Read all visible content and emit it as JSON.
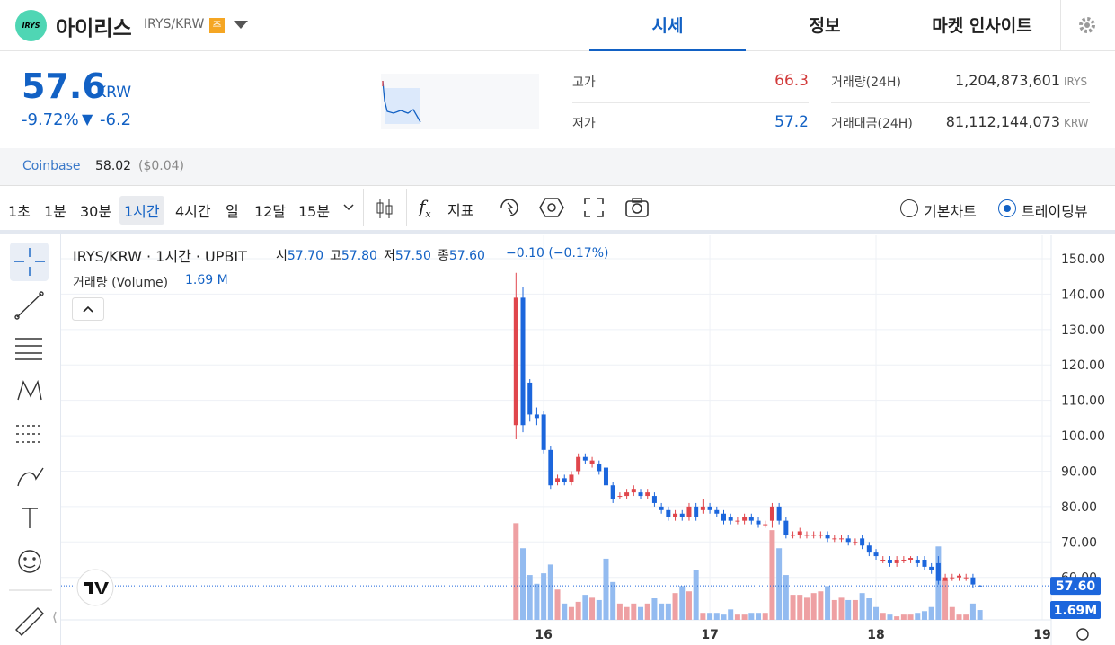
{
  "header": {
    "logo": "IRYS",
    "name": "아이리스",
    "pair": "IRYS/KRW",
    "badge": "주",
    "tabs": [
      "시세",
      "정보",
      "마켓 인사이트"
    ],
    "active_tab": 0
  },
  "price": {
    "value": "57.6",
    "unit": "KRW",
    "change_rate": "-9.72%",
    "arrow": "▼",
    "change": "-6.2"
  },
  "stats": {
    "high_label": "고가",
    "high": "66.3",
    "low_label": "저가",
    "low": "57.2",
    "volume_label": "거래량(24H)",
    "volume": "1,204,873,601",
    "volume_unit": "IRYS",
    "amount_label": "거래대금(24H)",
    "amount": "81,112,144,073",
    "amount_unit": "KRW"
  },
  "exchange": {
    "name": "Coinbase",
    "price": "58.02",
    "usd": "($0.04)"
  },
  "toolbar": {
    "intervals": [
      "1초",
      "1분",
      "30분",
      "1시간",
      "4시간",
      "일",
      "12달",
      "15분"
    ],
    "active_interval": 3,
    "indicator": "지표",
    "chart_modes": [
      "기본차트",
      "트레이딩뷰"
    ],
    "selected_mode": 1
  },
  "chart_data": {
    "type": "candlestick",
    "legend_title": "IRYS/KRW · 1시간 · UPBIT",
    "ohlc_labels": [
      "시",
      "고",
      "저",
      "종"
    ],
    "ohlc_values": [
      "57.70",
      "57.80",
      "57.50",
      "57.60"
    ],
    "change": "−0.10 (−0.17%)",
    "volume_title": "거래량 (Volume)",
    "volume_value": "1.69 M",
    "x": [
      -4,
      -3,
      -2,
      -1,
      0,
      1,
      2,
      3,
      4,
      5,
      6,
      7,
      8,
      9,
      10,
      11,
      12,
      13,
      14,
      15,
      16,
      17,
      18,
      19,
      20,
      21,
      22,
      23,
      24,
      25,
      26,
      27,
      28,
      29,
      30,
      31,
      32,
      33,
      34,
      35,
      36,
      37,
      38,
      39,
      40,
      41,
      42,
      43,
      44,
      45,
      46,
      47,
      48,
      49,
      50,
      51,
      52,
      53,
      54,
      55,
      56,
      57,
      58,
      59,
      60,
      61,
      62,
      63
    ],
    "open": [
      103,
      139,
      115,
      106,
      106,
      96,
      87,
      88,
      87,
      90,
      94,
      92,
      92,
      91,
      86,
      83,
      83,
      84,
      84,
      83,
      83,
      80,
      79,
      77,
      78,
      77,
      80,
      79,
      80,
      79,
      78,
      77,
      76,
      76,
      77,
      76,
      75,
      76,
      80,
      76,
      72,
      72,
      72,
      72,
      72,
      72,
      71,
      71,
      71,
      70,
      71,
      69,
      67,
      65,
      65,
      64,
      65,
      65,
      65,
      65,
      63,
      64,
      59,
      60,
      60,
      60,
      60,
      57.7
    ],
    "high": [
      146,
      142,
      116,
      108,
      107,
      97,
      89,
      89,
      90,
      95,
      95,
      94,
      93,
      92,
      87,
      84,
      85,
      86,
      85,
      85,
      84,
      81,
      80,
      79,
      79,
      81,
      81,
      82,
      81,
      80,
      79,
      78,
      77,
      78,
      78,
      77,
      76,
      81,
      81,
      77,
      73,
      74,
      73,
      73,
      73,
      73,
      72,
      72,
      72,
      71,
      72,
      70,
      68,
      66,
      66,
      66,
      66,
      66,
      66,
      66,
      64,
      66,
      61,
      61,
      61,
      61,
      61,
      57.8
    ],
    "low": [
      99,
      101,
      104,
      103,
      95,
      85,
      86,
      86,
      86,
      89,
      92,
      91,
      89,
      85,
      81,
      82,
      82,
      83,
      82,
      82,
      80,
      78,
      76,
      76,
      76,
      76,
      76,
      78,
      78,
      77,
      75,
      75,
      75,
      75,
      75,
      74,
      74,
      74,
      75,
      71,
      71,
      71,
      71,
      71,
      71,
      70,
      70,
      70,
      69,
      69,
      68,
      66,
      65,
      64,
      63,
      63,
      64,
      64,
      63,
      62,
      61,
      58,
      59,
      59,
      59,
      59,
      57,
      57.5
    ],
    "close": [
      139,
      103,
      106,
      105,
      96,
      86,
      88,
      87,
      89,
      94,
      93,
      93,
      90,
      86,
      82,
      83,
      84,
      85,
      83,
      84,
      81,
      79,
      77,
      78,
      77,
      80,
      77,
      80,
      79,
      78,
      76,
      76,
      76,
      77,
      76,
      75,
      75,
      80,
      76,
      72,
      72,
      73,
      72,
      72,
      72,
      71,
      71,
      71,
      70,
      70,
      69,
      67,
      66,
      65,
      64,
      65,
      65,
      65.5,
      64,
      63,
      62,
      59,
      60,
      60,
      60.5,
      60,
      58,
      57.6
    ],
    "volume": [
      16.6,
      12.3,
      7.7,
      6.2,
      8.0,
      9.5,
      5.2,
      2.8,
      2.2,
      3.1,
      4.3,
      3.8,
      3.4,
      10.5,
      6.5,
      2.8,
      2.2,
      2.8,
      2.2,
      2.8,
      3.7,
      2.8,
      2.8,
      4.6,
      5.8,
      4.9,
      8.6,
      1.2,
      1.2,
      1.2,
      0.9,
      1.8,
      0.9,
      0.9,
      1.2,
      1.2,
      1.2,
      15.4,
      12.3,
      7.7,
      4.3,
      4.3,
      3.8,
      4.6,
      4.9,
      5.8,
      3.4,
      3.8,
      3.4,
      3.4,
      4.6,
      3.7,
      2.2,
      1.2,
      0.9,
      0.6,
      0.9,
      0.9,
      1.2,
      1.5,
      2.2,
      12.6,
      6.8,
      2.2,
      0.9,
      0.9,
      2.8,
      1.69
    ],
    "xlim": [
      -69.7,
      73.3
    ],
    "xticks": [
      {
        "value": 0,
        "label": "16"
      },
      {
        "value": 24,
        "label": "17"
      },
      {
        "value": 48,
        "label": "18"
      },
      {
        "value": 72,
        "label": "19"
      }
    ],
    "ylim": [
      48,
      156.6
    ],
    "yticks": [
      {
        "value": 60,
        "label": "60.00"
      },
      {
        "value": 70,
        "label": "70.00"
      },
      {
        "value": 80,
        "label": "80.00"
      },
      {
        "value": 90,
        "label": "90.00"
      },
      {
        "value": 100,
        "label": "100.00"
      },
      {
        "value": 110,
        "label": "110.00"
      },
      {
        "value": 120,
        "label": "120.00"
      },
      {
        "value": 130,
        "label": "130.00"
      },
      {
        "value": 140,
        "label": "140.00"
      },
      {
        "value": 150,
        "label": "150.00"
      }
    ],
    "vlim": [
      0,
      66
    ],
    "last_price_label": "57.60",
    "last_volume_label": "1.69M",
    "up_color": "#e0464c",
    "down_color": "#1c66dc",
    "up_volume_color": "#eea0a3",
    "down_volume_color": "#93bbf0",
    "grid": true
  }
}
